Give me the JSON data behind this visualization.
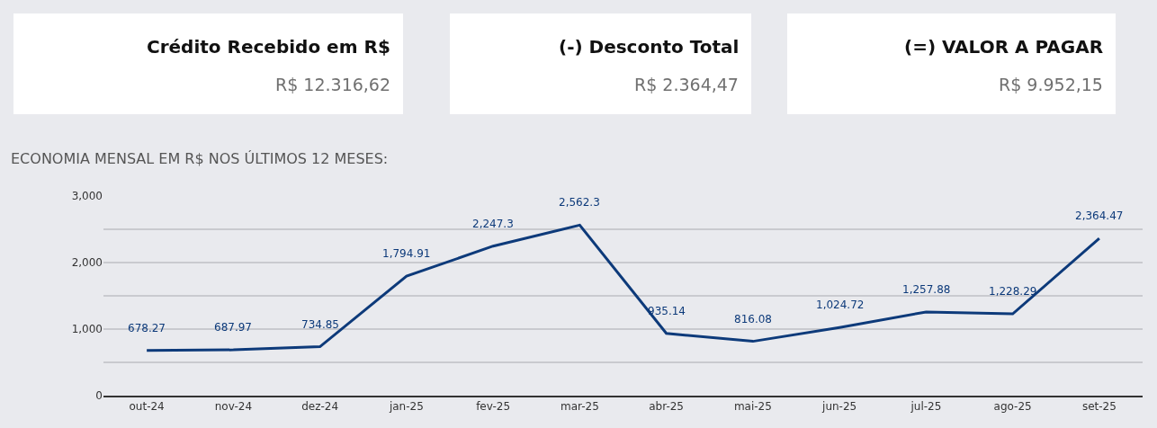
{
  "chart_data": [
    {
      "type": "other",
      "title": "Crédito Recebido em R$",
      "annotations": [
        "R$ 12.316,62"
      ]
    },
    {
      "type": "other",
      "title": "(-) Desconto Total",
      "annotations": [
        "R$ 2.364,47"
      ]
    },
    {
      "type": "other",
      "title": "(=) VALOR A PAGAR",
      "annotations": [
        "R$ 9.952,15"
      ]
    },
    {
      "type": "line",
      "title": "ECONOMIA MENSAL EM R$ NOS ÚLTIMOS 12 MESES:",
      "categories": [
        "out-24",
        "nov-24",
        "dez-24",
        "jan-25",
        "fev-25",
        "mar-25",
        "abr-25",
        "mai-25",
        "jun-25",
        "jul-25",
        "ago-25",
        "set-25"
      ],
      "series": [
        {
          "color": "#0d3a7a",
          "values": [
            678.27,
            687.97,
            734.85,
            1794.91,
            2247.3,
            2562.3,
            935.14,
            816.08,
            1024.72,
            1257.88,
            1228.29,
            2364.47
          ],
          "value_labels": [
            "678.27",
            "687.97",
            "734.85",
            "1,794.91",
            "2,247.3",
            "2,562.3",
            "935.14",
            "816.08",
            "1,024.72",
            "1,257.88",
            "1,228.29",
            "2,364.47"
          ]
        }
      ],
      "ylim": [
        0,
        3000
      ],
      "yticks": [
        {
          "value": 0,
          "label": "0"
        },
        {
          "value": 500,
          "label": null
        },
        {
          "value": 1000,
          "label": "1,000"
        },
        {
          "value": 1500,
          "label": null
        },
        {
          "value": 2000,
          "label": "2,000"
        },
        {
          "value": 2500,
          "label": null
        },
        {
          "value": 3000,
          "label": "3,000"
        }
      ],
      "grid": "y",
      "marker": "none",
      "line_style": "solid"
    }
  ]
}
